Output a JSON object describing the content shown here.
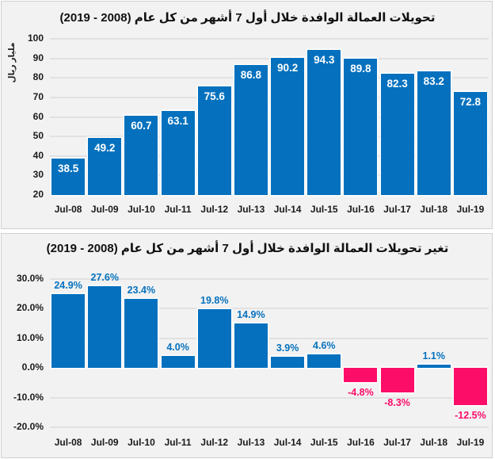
{
  "colors": {
    "bar_blue": "#0571BE",
    "bar_pink": "#FC0D68",
    "value_label_white": "#FFFFFF",
    "axis_text": "#1A1A1A",
    "gridline": "#E1E1E1",
    "panel_bg": "#F2F2F2",
    "panel_border": "#D0D0D0",
    "page_bg": "#FFFFFF"
  },
  "chart_data": [
    {
      "type": "bar",
      "title": "تحويلات العمالة الوافدة خلال أول 7 أشهر من كل عام (2008 - 2019)",
      "ylabel": "مليار ريال",
      "xlabel": "",
      "categories": [
        "Jul-08",
        "Jul-09",
        "Jul-10",
        "Jul-11",
        "Jul-12",
        "Jul-13",
        "Jul-14",
        "Jul-15",
        "Jul-16",
        "Jul-17",
        "Jul-18",
        "Jul-19"
      ],
      "values": [
        38.5,
        49.2,
        60.7,
        63.1,
        75.6,
        86.8,
        90.2,
        94.3,
        89.8,
        82.3,
        83.2,
        72.8
      ],
      "data_labels": [
        "38.5",
        "49.2",
        "60.7",
        "63.1",
        "75.6",
        "86.8",
        "90.2",
        "94.3",
        "89.8",
        "82.3",
        "83.2",
        "72.8"
      ],
      "data_label_position": "inside-top",
      "ylim": [
        20,
        100
      ],
      "ytick_step": 10,
      "ytick_labels": [
        "20",
        "30",
        "40",
        "50",
        "60",
        "70",
        "80",
        "90",
        "100"
      ],
      "grid": true,
      "legend": "none",
      "bar_color_key": "bar_blue"
    },
    {
      "type": "bar",
      "title": "تغير تحويلات العمالة الوافدة خلال أول 7 أشهر من كل عام (2008 - 2019)",
      "ylabel": "",
      "xlabel": "",
      "categories": [
        "Jul-08",
        "Jul-09",
        "Jul-10",
        "Jul-11",
        "Jul-12",
        "Jul-13",
        "Jul-14",
        "Jul-15",
        "Jul-16",
        "Jul-17",
        "Jul-18",
        "Jul-19"
      ],
      "values": [
        24.9,
        27.6,
        23.4,
        4.0,
        19.8,
        14.9,
        3.9,
        4.6,
        -4.8,
        -8.3,
        1.1,
        -12.5
      ],
      "data_labels": [
        "24.9%",
        "27.6%",
        "23.4%",
        "4.0%",
        "19.8%",
        "14.9%",
        "3.9%",
        "4.6%",
        "-4.8%",
        "-8.3%",
        "1.1%",
        "-12.5%"
      ],
      "data_label_position": "outside-end",
      "ylim": [
        -20,
        30
      ],
      "ytick_step": 10,
      "ytick_labels": [
        "-20.0%",
        "-10.0%",
        "0.0%",
        "10.0%",
        "20.0%",
        "30.0%"
      ],
      "grid": true,
      "legend": "none",
      "positive_color_key": "bar_blue",
      "negative_color_key": "bar_pink"
    }
  ]
}
